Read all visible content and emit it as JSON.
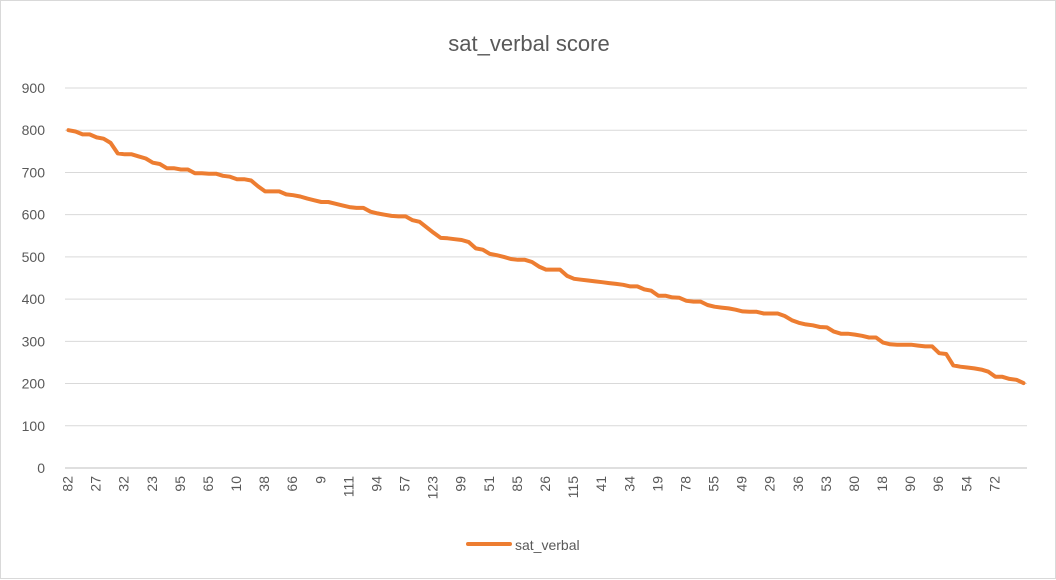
{
  "chart_data": {
    "type": "line",
    "title": "sat_verbal score",
    "xlabel": "",
    "ylabel": "",
    "ylim": [
      0,
      900
    ],
    "yticks": [
      0,
      100,
      200,
      300,
      400,
      500,
      600,
      700,
      800,
      900
    ],
    "grid": true,
    "legend_position": "bottom",
    "x_tick_labels": [
      "82",
      "27",
      "32",
      "23",
      "95",
      "65",
      "10",
      "38",
      "66",
      "9",
      "111",
      "94",
      "57",
      "123",
      "99",
      "51",
      "85",
      "26",
      "115",
      "41",
      "34",
      "19",
      "78",
      "55",
      "49",
      "29",
      "36",
      "53",
      "80",
      "18",
      "90",
      "96",
      "54",
      "72"
    ],
    "series": [
      {
        "name": "sat_verbal",
        "color": "#ED7D31",
        "values": [
          800,
          797,
          790,
          790,
          783,
          780,
          770,
          745,
          743,
          743,
          738,
          733,
          723,
          720,
          710,
          710,
          707,
          707,
          698,
          698,
          697,
          697,
          692,
          690,
          684,
          684,
          681,
          667,
          655,
          655,
          655,
          648,
          646,
          643,
          638,
          634,
          630,
          630,
          626,
          622,
          618,
          616,
          616,
          607,
          603,
          600,
          597,
          596,
          596,
          587,
          583,
          570,
          557,
          545,
          544,
          542,
          540,
          535,
          520,
          517,
          507,
          504,
          500,
          495,
          493,
          493,
          488,
          477,
          470,
          470,
          470,
          455,
          448,
          446,
          444,
          442,
          440,
          438,
          436,
          434,
          430,
          430,
          423,
          420,
          408,
          408,
          404,
          403,
          396,
          394,
          394,
          386,
          382,
          380,
          378,
          375,
          371,
          370,
          370,
          366,
          366,
          366,
          360,
          350,
          344,
          340,
          338,
          334,
          333,
          323,
          318,
          318,
          316,
          313,
          309,
          309,
          297,
          293,
          292,
          292,
          292,
          290,
          288,
          288,
          272,
          270,
          243,
          240,
          238,
          236,
          233,
          228,
          216,
          216,
          211,
          209,
          201
        ]
      }
    ]
  }
}
